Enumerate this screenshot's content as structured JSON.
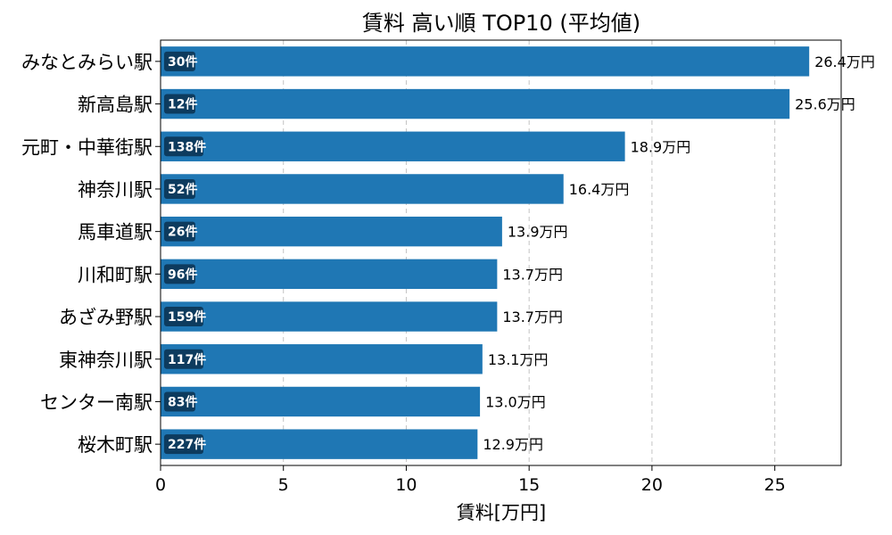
{
  "chart_data": {
    "type": "bar",
    "orientation": "horizontal",
    "title": "賃料 高い順 TOP10 (平均値)",
    "xlabel": "賃料[万円]",
    "ylabel": "",
    "xlim": [
      0,
      27.7
    ],
    "xticks": [
      0,
      5,
      10,
      15,
      20,
      25
    ],
    "grid": "x-dashed",
    "bar_color": "#1f77b4",
    "badge_color": "#0d3b5e",
    "value_suffix": "万円",
    "categories": [
      "みなとみらい駅",
      "新高島駅",
      "元町・中華街駅",
      "神奈川駅",
      "馬車道駅",
      "川和町駅",
      "あざみ野駅",
      "東神奈川駅",
      "センター南駅",
      "桜木町駅"
    ],
    "values": [
      26.4,
      25.6,
      18.9,
      16.4,
      13.9,
      13.7,
      13.7,
      13.1,
      13.0,
      12.9
    ],
    "value_labels": [
      "26.4万円",
      "25.6万円",
      "18.9万円",
      "16.4万円",
      "13.9万円",
      "13.7万円",
      "13.7万円",
      "13.1万円",
      "13.0万円",
      "12.9万円"
    ],
    "counts": [
      "30件",
      "12件",
      "138件",
      "52件",
      "26件",
      "96件",
      "159件",
      "117件",
      "83件",
      "227件"
    ]
  }
}
